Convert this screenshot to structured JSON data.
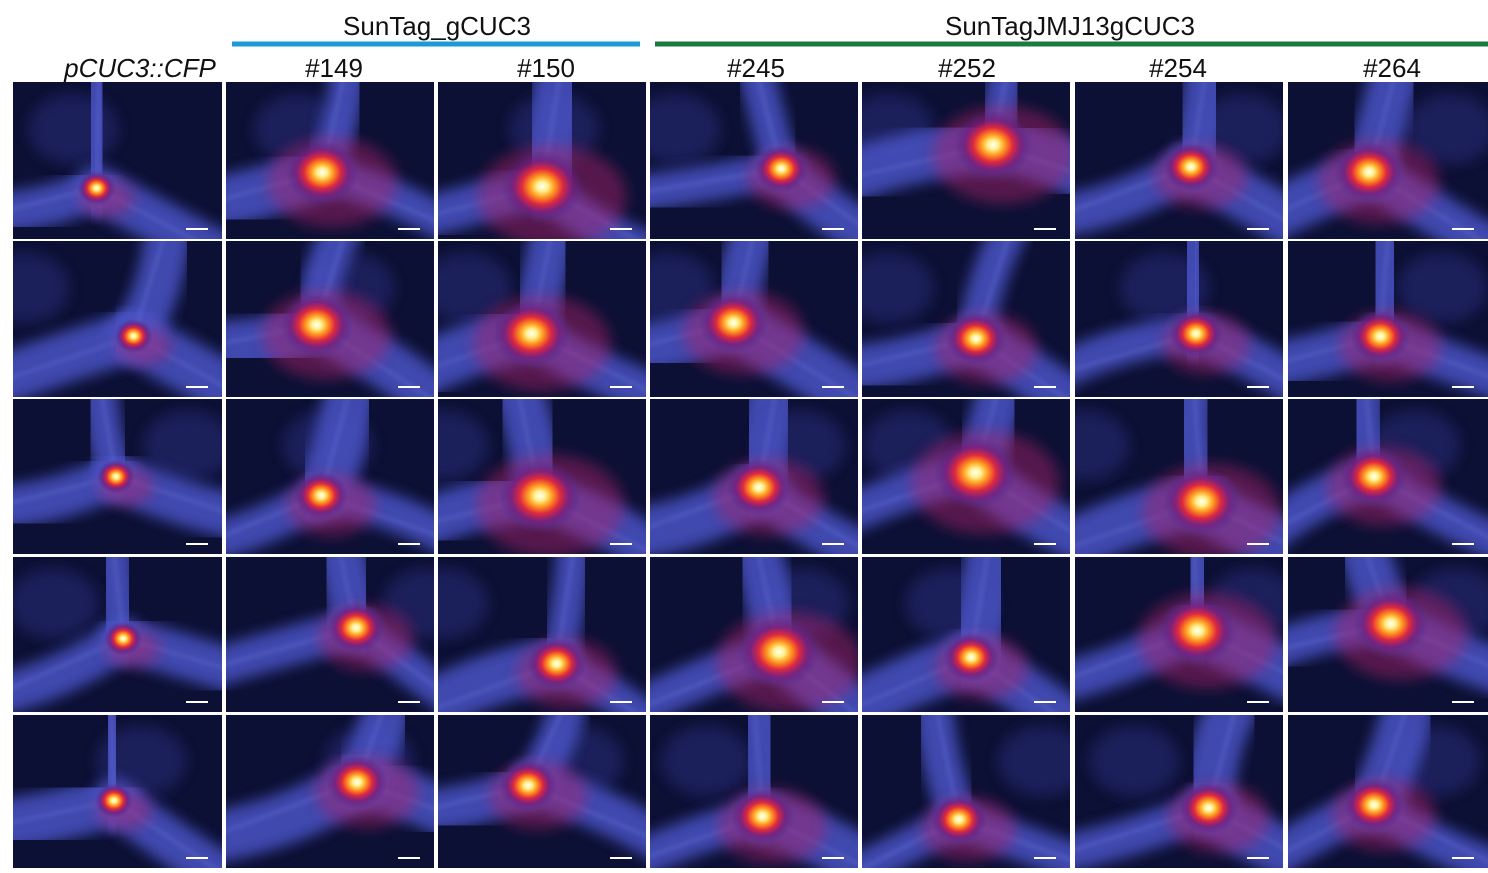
{
  "header": {
    "groups": [
      {
        "label": "SunTag_gCUC3"
      },
      {
        "label": "SunTagJMJ13gCUC3"
      }
    ],
    "columns": [
      "pCUC3::CFP",
      "#149",
      "#150",
      "#245",
      "#252",
      "#254",
      "#264"
    ]
  }
}
